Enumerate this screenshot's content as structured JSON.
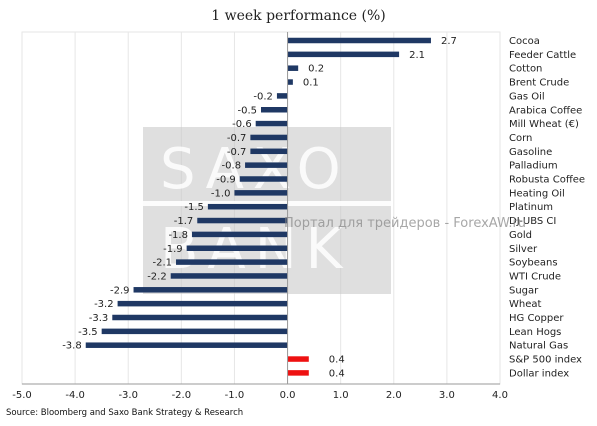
{
  "chart_data": {
    "type": "bar",
    "orientation": "horizontal",
    "title": "1 week performance (%)",
    "categories": [
      "Cocoa",
      "Feeder Cattle",
      "Cotton",
      "Brent Crude",
      "Gas Oil",
      "Arabica Coffee",
      "Mill Wheat (€)",
      "Corn",
      "Gasoline",
      "Palladium",
      "Robusta Coffee",
      "Heating Oil",
      "Platinum",
      "DJ-UBS CI",
      "Gold",
      "Silver",
      "Soybeans",
      "WTI Crude",
      "Sugar",
      "Wheat",
      "HG Copper",
      "Lean Hogs",
      "Natural Gas",
      "S&P 500 index",
      "Dollar index"
    ],
    "values": [
      2.7,
      2.1,
      0.2,
      0.1,
      -0.2,
      -0.5,
      -0.6,
      -0.7,
      -0.7,
      -0.8,
      -0.9,
      -1.0,
      -1.5,
      -1.7,
      -1.8,
      -1.9,
      -2.1,
      -2.2,
      -2.9,
      -3.2,
      -3.3,
      -3.5,
      -3.8,
      0.4,
      0.4
    ],
    "value_labels": [
      "2.7",
      "2.1",
      "0.2",
      "0.1",
      "-0.2",
      "-0.5",
      "-0.6",
      "-0.7",
      "-0.7",
      "-0.8",
      "-0.9",
      "-1.0",
      "-1.5",
      "-1.7",
      "-1.8",
      "-1.9",
      "-2.1",
      "-2.2",
      "-2.9",
      "-3.2",
      "-3.3",
      "-3.5",
      "-3.8",
      "0.4",
      "0.4"
    ],
    "highlight": [
      false,
      false,
      false,
      false,
      false,
      false,
      false,
      false,
      false,
      false,
      false,
      false,
      false,
      false,
      false,
      false,
      false,
      false,
      false,
      false,
      false,
      false,
      false,
      true,
      true
    ],
    "xlim": [
      -5.0,
      4.0
    ],
    "xticks": [
      -5.0,
      -4.0,
      -3.0,
      -2.0,
      -1.0,
      0.0,
      1.0,
      2.0,
      3.0,
      4.0
    ],
    "xtick_labels": [
      "-5.0",
      "-4.0",
      "-3.0",
      "-2.0",
      "-1.0",
      "0.0",
      "1.0",
      "2.0",
      "3.0",
      "4.0"
    ],
    "colors": {
      "commodity": "#1f3864",
      "index": "#ee1111",
      "grid": "#e6e6e6",
      "axis": "#9a9a9a"
    },
    "grid": "vertical",
    "legend": "none",
    "source": "Source: Bloomberg and Saxo Bank Strategy & Research"
  },
  "watermark": {
    "logo_text_top": "SAXO",
    "logo_text_bottom": "BANK",
    "overlay_text": "Портал для трейдеров - ForexAW.ru"
  }
}
